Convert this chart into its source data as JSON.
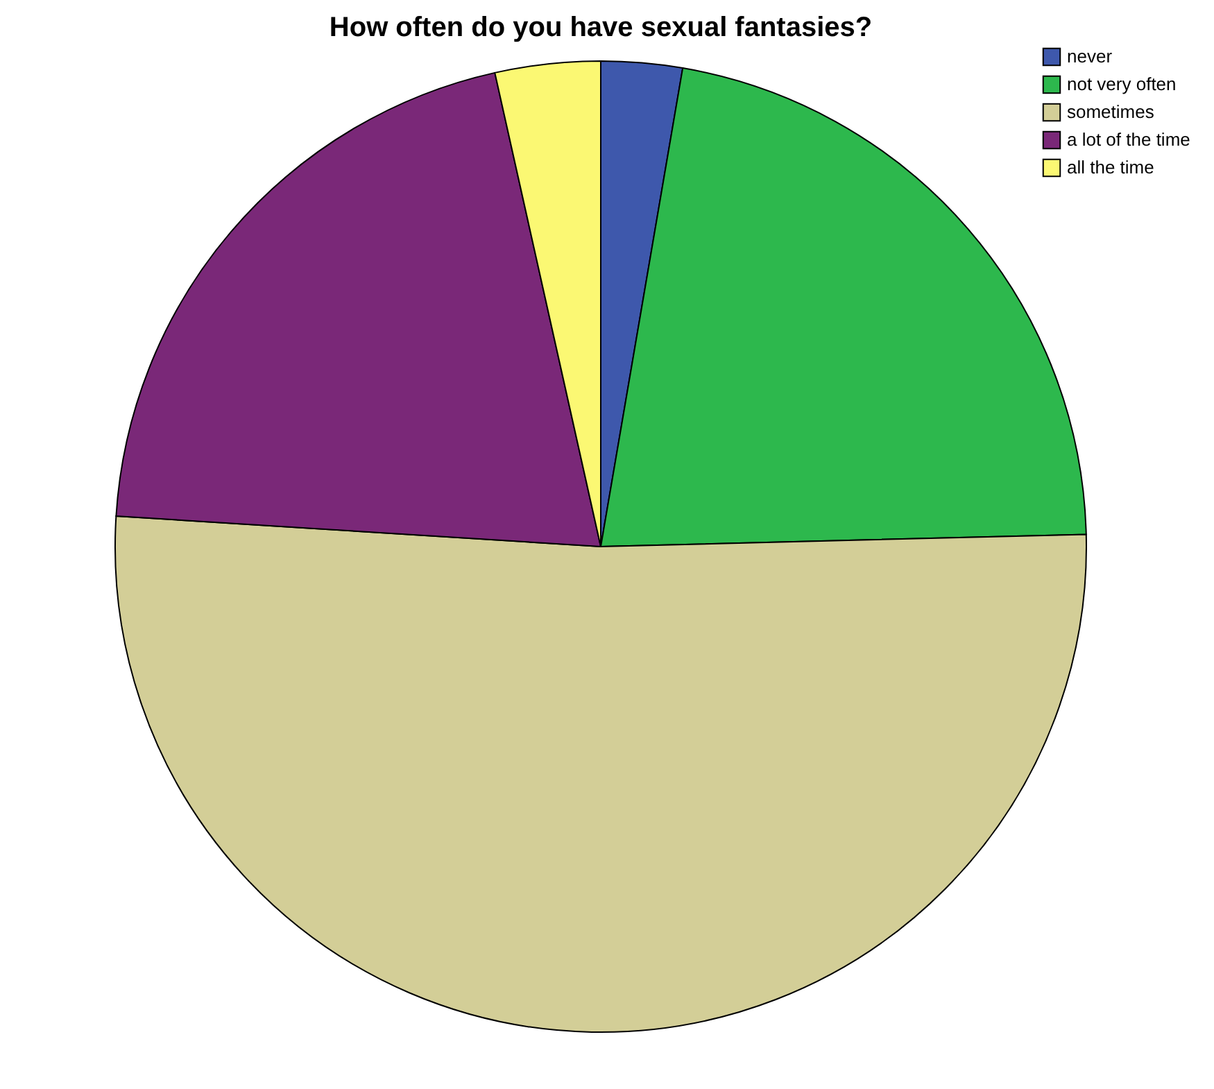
{
  "chart_data": {
    "type": "pie",
    "title": "How often do you have sexual fantasies?",
    "categories": [
      "never",
      "not very often",
      "sometimes",
      "a lot of the time",
      "all the time"
    ],
    "values": [
      2.7,
      21.9,
      51.4,
      20.5,
      3.5
    ],
    "colors": [
      "#3e58ac",
      "#2db84d",
      "#d3ce97",
      "#7a2878",
      "#fbf873"
    ],
    "legend": "top right"
  }
}
